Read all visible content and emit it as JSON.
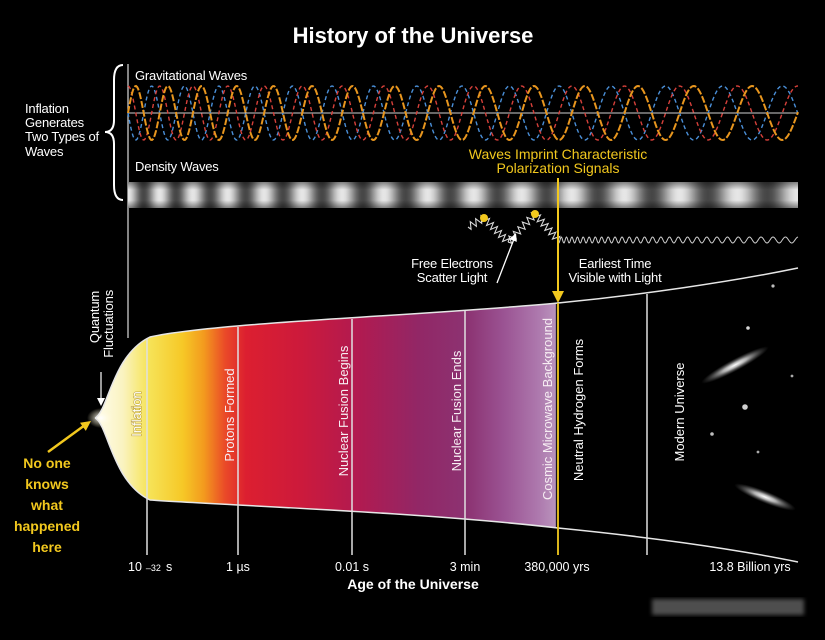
{
  "title": "History of the Universe",
  "inflation_waves_note": [
    "Inflation",
    "Generates",
    "Two Types of",
    "Waves"
  ],
  "gravitational_waves_label": "Gravitational Waves",
  "density_waves_label": "Density Waves",
  "polarization_note": [
    "Waves Imprint Characteristic",
    "Polarization Signals"
  ],
  "free_electrons_note": [
    "Free Electrons",
    "Scatter Light"
  ],
  "earliest_light_note": [
    "Earliest Time",
    "Visible with Light"
  ],
  "quantum_note": [
    "Quantum",
    "Fluctuations"
  ],
  "unknown_note": [
    "No one",
    "knows",
    "what",
    "happened",
    "here"
  ],
  "epochs": [
    "Inflation",
    "Protons Formed",
    "Nuclear Fusion Begins",
    "Nuclear Fusion Ends",
    "Cosmic Microwave Background",
    "Neutral Hydrogen Forms",
    "Modern Universe"
  ],
  "time_axis": {
    "label": "Age of the Universe",
    "ticks": [
      {
        "text": "10",
        "exponent": "–32",
        "unit": "s"
      },
      {
        "text": "1 µs"
      },
      {
        "text": "0.01 s"
      },
      {
        "text": "3 min"
      },
      {
        "text": "380,000 yrs"
      },
      {
        "text": "13.8 Billion yrs"
      }
    ]
  },
  "colors": {
    "background": "#000000",
    "text": "#ffffff",
    "highlight_yellow": "#f2c81e",
    "gravitational_wave_orange": "#e8961e",
    "gravitational_wave_blue": "#4a8fd8",
    "gravitational_wave_red": "#d6403a",
    "density_wave_gray": "#9a9a9a"
  }
}
